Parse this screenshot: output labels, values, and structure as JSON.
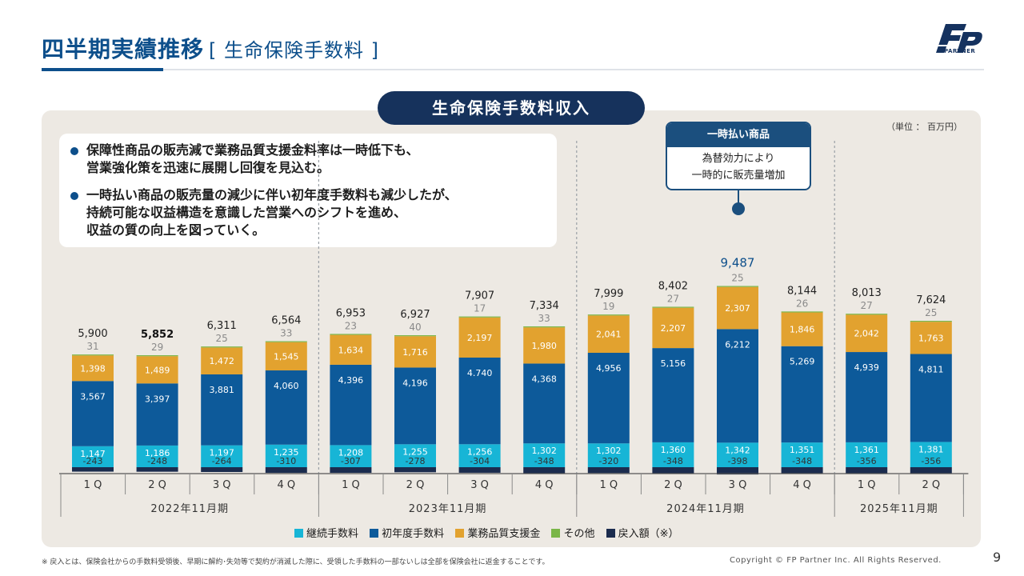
{
  "header": {
    "title": "四半期実績推移",
    "subtitle": "[ 生命保険手数料 ]",
    "logo_text": "PARTNER"
  },
  "chart_title": "生命保険手数料収入",
  "unit_label": "（単位 ： 百万円）",
  "notes": [
    "保障性商品の販売減で業務品質支援金料率は一時低下も、\n営業強化策を迅速に展開し回復を見込む。",
    "一時払い商品の販売量の減少に伴い初年度手数料も減少したが、\n持続可能な収益構造を意識した営業へのシフトを進め、\n収益の質の向上を図っていく。"
  ],
  "callout": {
    "title": "一時払い商品",
    "body": "為替効力により\n一時的に販売量増加"
  },
  "colors": {
    "continuing": "#17b5d6",
    "first_year": "#0d5a9a",
    "quality": "#e2a22f",
    "other": "#7ab648",
    "refund": "#1b2c4e"
  },
  "chart_data": {
    "type": "bar",
    "stacked": true,
    "categories": [
      "1Q",
      "2Q",
      "3Q",
      "4Q",
      "1Q",
      "2Q",
      "3Q",
      "4Q",
      "1Q",
      "2Q",
      "3Q",
      "4Q",
      "1Q",
      "2Q"
    ],
    "category_labels": [
      "1 Q",
      "2 Q",
      "3 Q",
      "4 Q",
      "1 Q",
      "2 Q",
      "3 Q",
      "4 Q",
      "1 Q",
      "2 Q",
      "3 Q",
      "4 Q",
      "1 Q",
      "2 Q"
    ],
    "periods": [
      {
        "label": "2022年11月期",
        "count": 4
      },
      {
        "label": "2023年11月期",
        "count": 4
      },
      {
        "label": "2024年11月期",
        "count": 4
      },
      {
        "label": "2025年11月期",
        "count": 2
      }
    ],
    "series": [
      {
        "name": "継続手数料",
        "color_key": "continuing",
        "values": [
          1147,
          1186,
          1197,
          1235,
          1208,
          1255,
          1256,
          1302,
          1302,
          1360,
          1342,
          1351,
          1361,
          1381
        ],
        "labels": [
          "1,147",
          "1,186",
          "1,197",
          "1,235",
          "1,208",
          "1,255",
          "1,256",
          "1,302",
          "1,302",
          "1,360",
          "1,342",
          "1,351",
          "1,361",
          "1,381"
        ]
      },
      {
        "name": "初年度手数料",
        "color_key": "first_year",
        "values": [
          3567,
          3397,
          3881,
          4060,
          4396,
          4196,
          4740,
          4368,
          4956,
          5156,
          6212,
          5269,
          4939,
          4811
        ],
        "labels": [
          "3,567",
          "3,397",
          "3,881",
          "4,060",
          "4,396",
          "4,196",
          "4.740",
          "4,368",
          "4,956",
          "5,156",
          "6,212",
          "5,269",
          "4,939",
          "4,811"
        ]
      },
      {
        "name": "業務品質支援金",
        "color_key": "quality",
        "values": [
          1398,
          1489,
          1472,
          1545,
          1634,
          1716,
          2197,
          1980,
          2041,
          2207,
          2307,
          1846,
          2042,
          1763
        ],
        "labels": [
          "1,398",
          "1,489",
          "1,472",
          "1,545",
          "1,634",
          "1,716",
          "2,197",
          "1,980",
          "2,041",
          "2,207",
          "2,307",
          "1,846",
          "2,042",
          "1,763"
        ]
      },
      {
        "name": "その他",
        "color_key": "other",
        "values": [
          31,
          29,
          25,
          33,
          23,
          40,
          17,
          33,
          19,
          27,
          25,
          26,
          27,
          25
        ],
        "labels": [
          "31",
          "29",
          "25",
          "33",
          "23",
          "40",
          "17",
          "33",
          "19",
          "27",
          "25",
          "26",
          "27",
          "25"
        ]
      },
      {
        "name": "戻入額（※）",
        "color_key": "refund",
        "values": [
          -243,
          -248,
          -264,
          -310,
          -307,
          -278,
          -304,
          -348,
          -320,
          -348,
          -398,
          -348,
          -356,
          -356
        ],
        "labels": [
          "-243",
          "-248",
          "-264",
          "-310",
          "-307",
          "-278",
          "-304",
          "-348",
          "-320",
          "-348",
          "-398",
          "-348",
          "-356",
          "-356"
        ]
      }
    ],
    "totals": [
      5900,
      5852,
      6311,
      6564,
      6953,
      6927,
      7907,
      7334,
      7999,
      8402,
      9487,
      8144,
      8013,
      7624
    ],
    "total_labels": [
      "5,900",
      "5,852",
      "6,311",
      "6,564",
      "6,953",
      "6,927",
      "7,907",
      "7,334",
      "7,999",
      "8,402",
      "9,487",
      "8,144",
      "8,013",
      "7,624"
    ],
    "highlight_index": 10
  },
  "footer": {
    "footnote": "※ 戻入とは、保険会社からの手数料受領後、早期に解約･失効等で契約が消滅した際に、受領した手数料の一部ないしは全部を保険会社に返金することです。",
    "copyright": "Copyright © FP Partner Inc. All Rights Reserved.",
    "page": "9"
  }
}
